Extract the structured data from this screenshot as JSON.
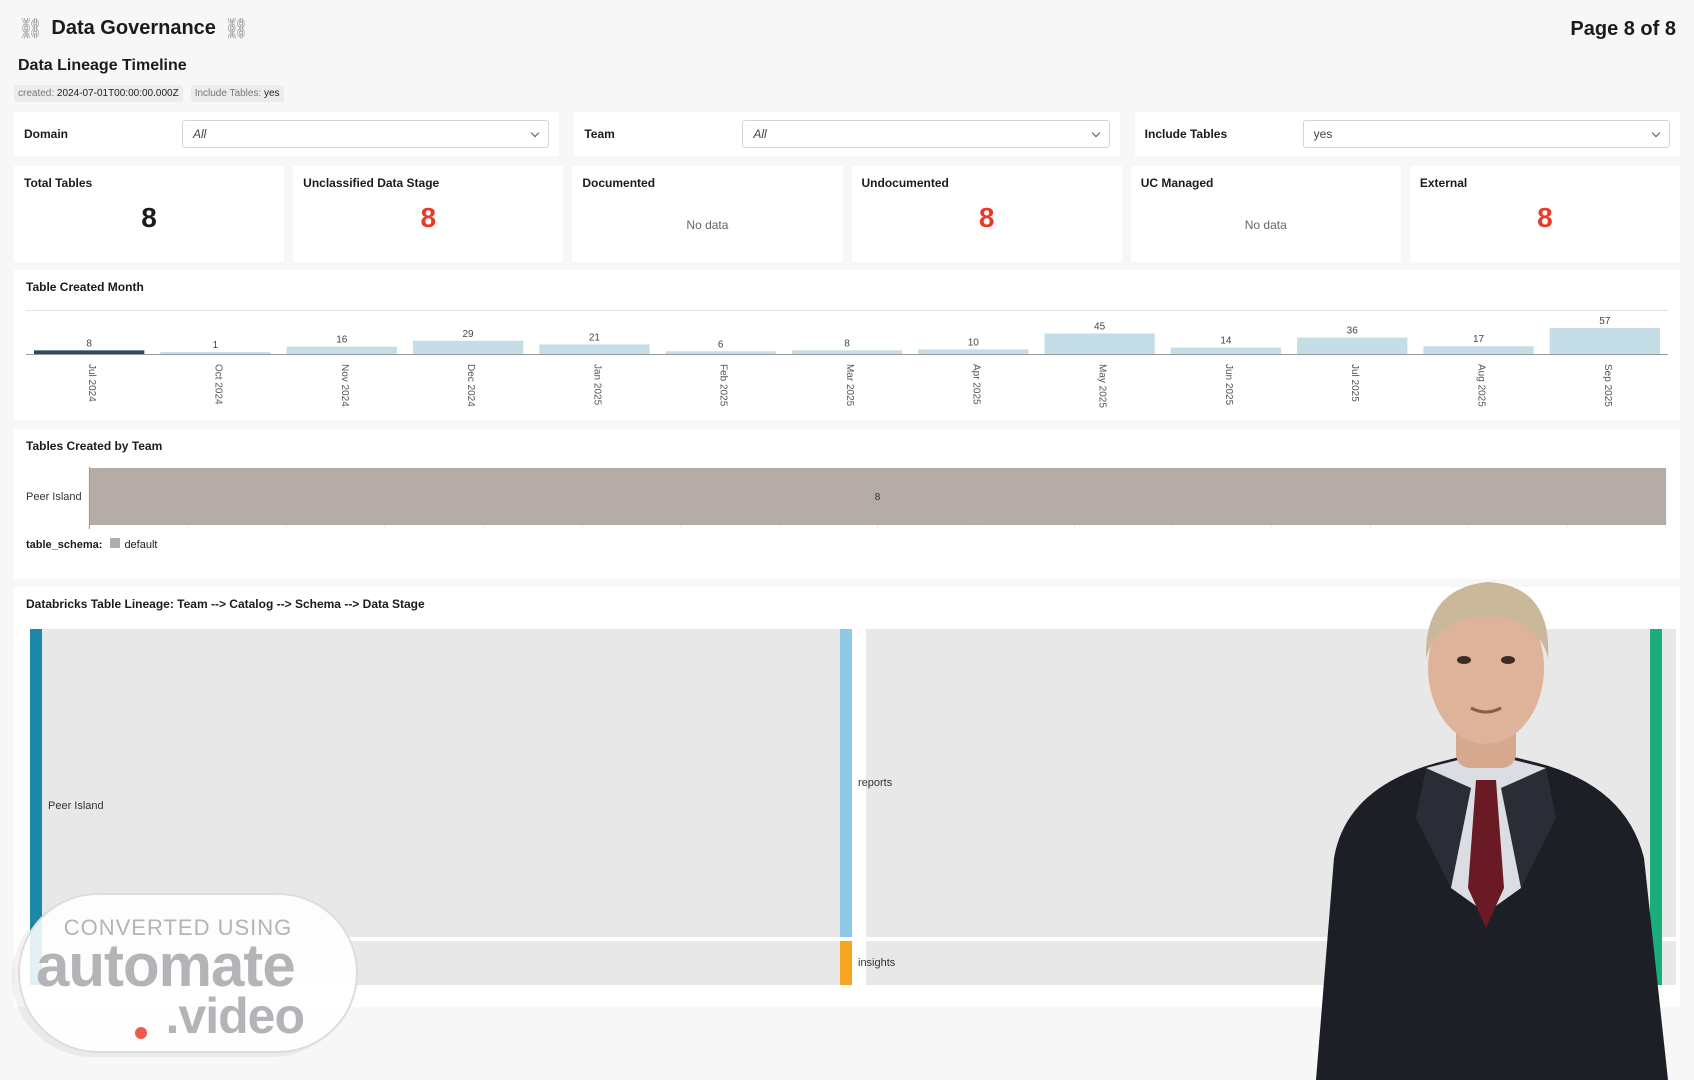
{
  "header": {
    "title": "Data Governance",
    "page_indicator": "Page 8 of 8",
    "subtitle": "Data Lineage Timeline"
  },
  "chips": [
    {
      "key": "created:",
      "value": "2024-07-01T00:00:00.000Z"
    },
    {
      "key": "Include Tables:",
      "value": "yes"
    }
  ],
  "filters": [
    {
      "label": "Domain",
      "value": "All"
    },
    {
      "label": "Team",
      "value": "All"
    },
    {
      "label": "Include Tables",
      "value": "yes"
    }
  ],
  "kpis": [
    {
      "title": "Total Tables",
      "value": "8",
      "color": "#1b1b1b"
    },
    {
      "title": "Unclassified Data Stage",
      "value": "8",
      "color": "#e8392b"
    },
    {
      "title": "Documented",
      "no_data": "No data"
    },
    {
      "title": "Undocumented",
      "value": "8",
      "color": "#e8392b"
    },
    {
      "title": "UC Managed",
      "no_data": "No data"
    },
    {
      "title": "External",
      "value": "8",
      "color": "#e8392b"
    }
  ],
  "colors": {
    "highlight_bar": "#2e4a5c",
    "bar": "#c5dde6",
    "team_bar": "#b5aca7",
    "team_node": "#1e88a8",
    "catalog_node": "#90c8e8",
    "insights_node": "#f5a623",
    "stage_node": "#1aae7d",
    "link": "#e8e8e8",
    "kpi_red": "#e8392b"
  },
  "chart_data": [
    {
      "type": "bar",
      "title": "Table Created Month",
      "categories": [
        "Jul 2024",
        "Oct 2024",
        "Nov 2024",
        "Dec 2024",
        "Jan 2025",
        "Feb 2025",
        "Mar 2025",
        "Apr 2025",
        "May 2025",
        "Jun 2025",
        "Jul 2025",
        "Aug 2025",
        "Sep 2025"
      ],
      "values": [
        8,
        1,
        16,
        29,
        21,
        6,
        8,
        10,
        45,
        14,
        36,
        17,
        57
      ],
      "highlight_index": 0
    },
    {
      "type": "bar",
      "orientation": "horizontal",
      "title": "Tables Created by Team",
      "categories": [
        "Peer Island"
      ],
      "series": [
        {
          "name": "default",
          "values": [
            8
          ]
        }
      ],
      "legend_title": "table_schema:"
    },
    {
      "type": "sankey",
      "title": "Databricks Table Lineage: Team --> Catalog --> Schema --> Data Stage",
      "nodes": [
        "Peer Island",
        "reports",
        "insights"
      ],
      "links": [
        {
          "source": "Peer Island",
          "target": "reports"
        },
        {
          "source": "Peer Island",
          "target": "insights"
        }
      ]
    }
  ],
  "watermark": {
    "top": "CONVERTED USING",
    "brand": "automate",
    "suffix": ".video"
  }
}
